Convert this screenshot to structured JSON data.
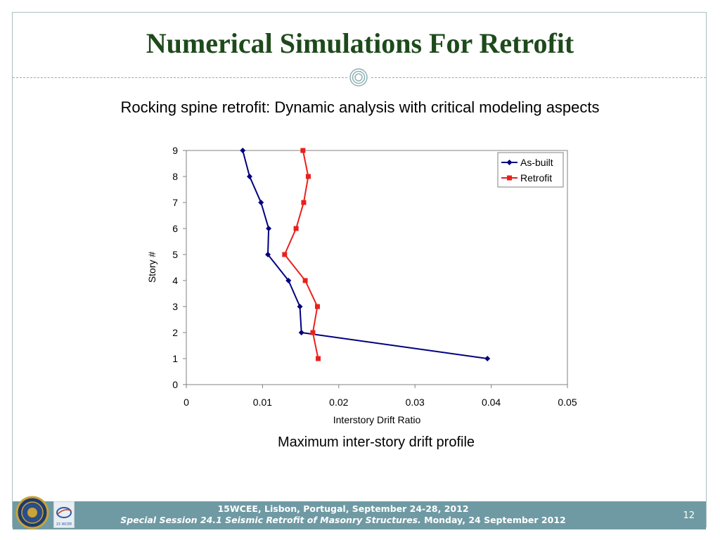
{
  "slide": {
    "title": "Numerical Simulations For Retrofit",
    "subtitle": "Rocking spine retrofit: Dynamic analysis with critical modeling aspects",
    "caption": "Maximum inter-story drift profile",
    "page_number": "12",
    "accent_color": "#1e4a1b"
  },
  "footer": {
    "line1": "15WCEE, Lisbon, Portugal, September 24-28, 2012",
    "line2_italic": "Special Session 24.1 Seismic Retrofit of Masonry Structures.",
    "line2_normal": " Monday, 24 September 2012",
    "logo_left": "university-seal-icon",
    "logo_right": "wcee-logo-icon",
    "logo_right_text": "15 WCEE"
  },
  "chart_data": {
    "type": "line",
    "xlabel": "Interstory Drift Ratio",
    "ylabel": "Story #",
    "xlim": [
      0,
      0.05
    ],
    "ylim": [
      0,
      9
    ],
    "xticks": [
      "0",
      "0.01",
      "0.02",
      "0.03",
      "0.04",
      "0.05"
    ],
    "yticks": [
      "0",
      "1",
      "2",
      "3",
      "4",
      "5",
      "6",
      "7",
      "8",
      "9"
    ],
    "legend_position": "top-right",
    "grid": false,
    "series": [
      {
        "name": "As-built",
        "color": "#00007f",
        "marker": "diamond",
        "points": [
          [
            0.0395,
            1
          ],
          [
            0.0151,
            2
          ],
          [
            0.0149,
            3
          ],
          [
            0.0134,
            4
          ],
          [
            0.0107,
            5
          ],
          [
            0.0108,
            6
          ],
          [
            0.0098,
            7
          ],
          [
            0.0083,
            8
          ],
          [
            0.0074,
            9
          ]
        ]
      },
      {
        "name": "Retrofit",
        "color": "#e8211c",
        "marker": "square",
        "points": [
          [
            0.0173,
            1
          ],
          [
            0.0166,
            2
          ],
          [
            0.0172,
            3
          ],
          [
            0.0156,
            4
          ],
          [
            0.0129,
            5
          ],
          [
            0.0144,
            6
          ],
          [
            0.0154,
            7
          ],
          [
            0.016,
            8
          ],
          [
            0.0153,
            9
          ]
        ]
      }
    ]
  }
}
